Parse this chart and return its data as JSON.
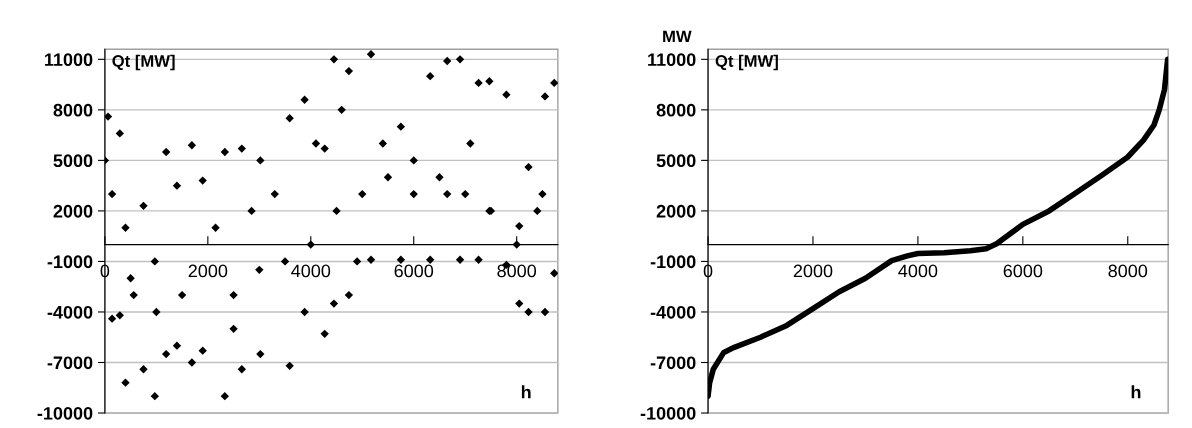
{
  "chart_data": [
    {
      "type": "scatter",
      "ylabel": "Qt [MW]",
      "xlabel": "h",
      "color": "#000000",
      "marker": "diamond",
      "grid": "y",
      "legend": false,
      "xlim": [
        0,
        8800
      ],
      "ylim": [
        -10000,
        11600
      ],
      "xticks": [
        0,
        2000,
        4000,
        6000,
        8000
      ],
      "yticks": [
        -10000,
        -7000,
        -4000,
        -1000,
        2000,
        5000,
        8000,
        11000
      ],
      "x": [
        0,
        60,
        140,
        140,
        290,
        290,
        400,
        400,
        560,
        750,
        750,
        970,
        970,
        1190,
        1190,
        1400,
        1400,
        1690,
        1690,
        1900,
        1900,
        2150,
        2330,
        2330,
        2500,
        2660,
        2660,
        2850,
        3020,
        3020,
        3300,
        3590,
        3590,
        3880,
        3880,
        4100,
        4270,
        4270,
        4450,
        4450,
        4600,
        4740,
        4740,
        4900,
        5170,
        5170,
        5400,
        5750,
        5750,
        6000,
        6320,
        6320,
        6650,
        6650,
        6900,
        6900,
        7100,
        7260,
        7260,
        7470,
        7470,
        7800,
        7800,
        8050,
        8050,
        8230,
        8230,
        8400,
        8550,
        8550,
        8730,
        8730,
        500,
        1000,
        1500,
        2500,
        3000,
        3500,
        4000,
        4500,
        5000,
        5500,
        6000,
        6500,
        7000,
        7500,
        8000,
        8500
      ],
      "values": [
        5000,
        7600,
        -4400,
        3000,
        6600,
        -4200,
        -8200,
        1000,
        -3000,
        2300,
        -7400,
        -9000,
        -1000,
        5500,
        -6500,
        3500,
        -6000,
        5900,
        -7000,
        3800,
        -6300,
        1000,
        -9000,
        5500,
        -5000,
        5700,
        -7400,
        2000,
        5000,
        -6500,
        3000,
        7500,
        -7200,
        8600,
        -4000,
        6000,
        -5300,
        5700,
        11000,
        -3500,
        8000,
        10300,
        -3000,
        -1000,
        11300,
        -900,
        6000,
        7000,
        -900,
        5000,
        10000,
        -900,
        10900,
        3000,
        11000,
        -900,
        6000,
        9600,
        -900,
        9700,
        2000,
        8900,
        -1200,
        1100,
        -3500,
        4600,
        -4000,
        2000,
        8800,
        -4000,
        9600,
        -1700,
        -2000,
        -4000,
        -3000,
        -3000,
        -1500,
        -1000,
        0,
        2000,
        3000,
        4000,
        3000,
        4000,
        3000,
        2000,
        0,
        3000
      ]
    },
    {
      "type": "line",
      "ylabel": "Qt [MW]",
      "xlabel": "h",
      "color": "#000000",
      "marker": "none",
      "grid": "y",
      "legend": false,
      "annotations": [
        "MW"
      ],
      "xlim": [
        0,
        8770
      ],
      "ylim": [
        -10000,
        11600
      ],
      "xticks": [
        0,
        2000,
        4000,
        6000,
        8000
      ],
      "yticks": [
        -10000,
        -7000,
        -4000,
        -1000,
        2000,
        5000,
        8000,
        11000
      ],
      "x": [
        0,
        30,
        100,
        300,
        500,
        1000,
        1500,
        2000,
        2500,
        3000,
        3500,
        3800,
        4000,
        4500,
        5000,
        5300,
        5500,
        6000,
        6500,
        7000,
        7500,
        8000,
        8300,
        8500,
        8600,
        8700,
        8760
      ],
      "values": [
        -9000,
        -8200,
        -7400,
        -6400,
        -6100,
        -5500,
        -4800,
        -3800,
        -2800,
        -2000,
        -950,
        -670,
        -530,
        -480,
        -370,
        -250,
        50,
        1200,
        2000,
        3050,
        4100,
        5200,
        6200,
        7100,
        8000,
        9200,
        11000
      ]
    }
  ]
}
